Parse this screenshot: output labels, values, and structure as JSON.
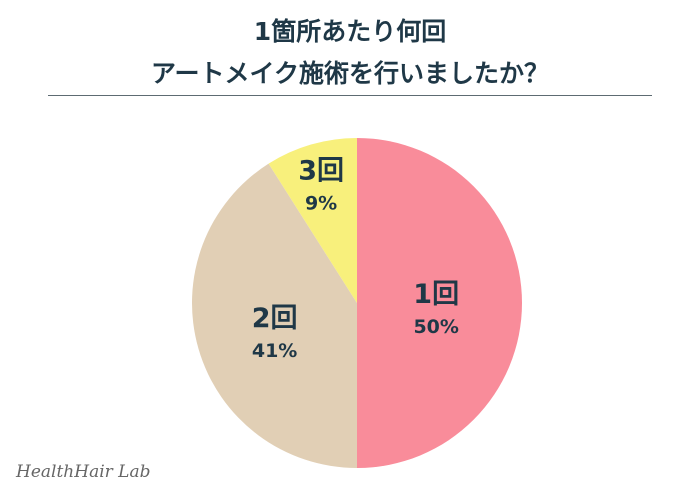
{
  "title_line1": "1箇所あたり何回",
  "title_line2": "アートメイク施術を行いましたか？",
  "logo": "HealthHair Lab",
  "chart_data": {
    "type": "pie",
    "title": "1箇所あたり何回 アートメイク施術を行いましたか？",
    "start": "top",
    "direction": "clockwise",
    "slices": [
      {
        "label": "1回",
        "value": 50,
        "value_label": "50%",
        "color": "#F98C9A"
      },
      {
        "label": "2回",
        "value": 41,
        "value_label": "41%",
        "color": "#E1CFB5"
      },
      {
        "label": "3回",
        "value": 9,
        "value_label": "9%",
        "color": "#F8F07C"
      }
    ]
  }
}
